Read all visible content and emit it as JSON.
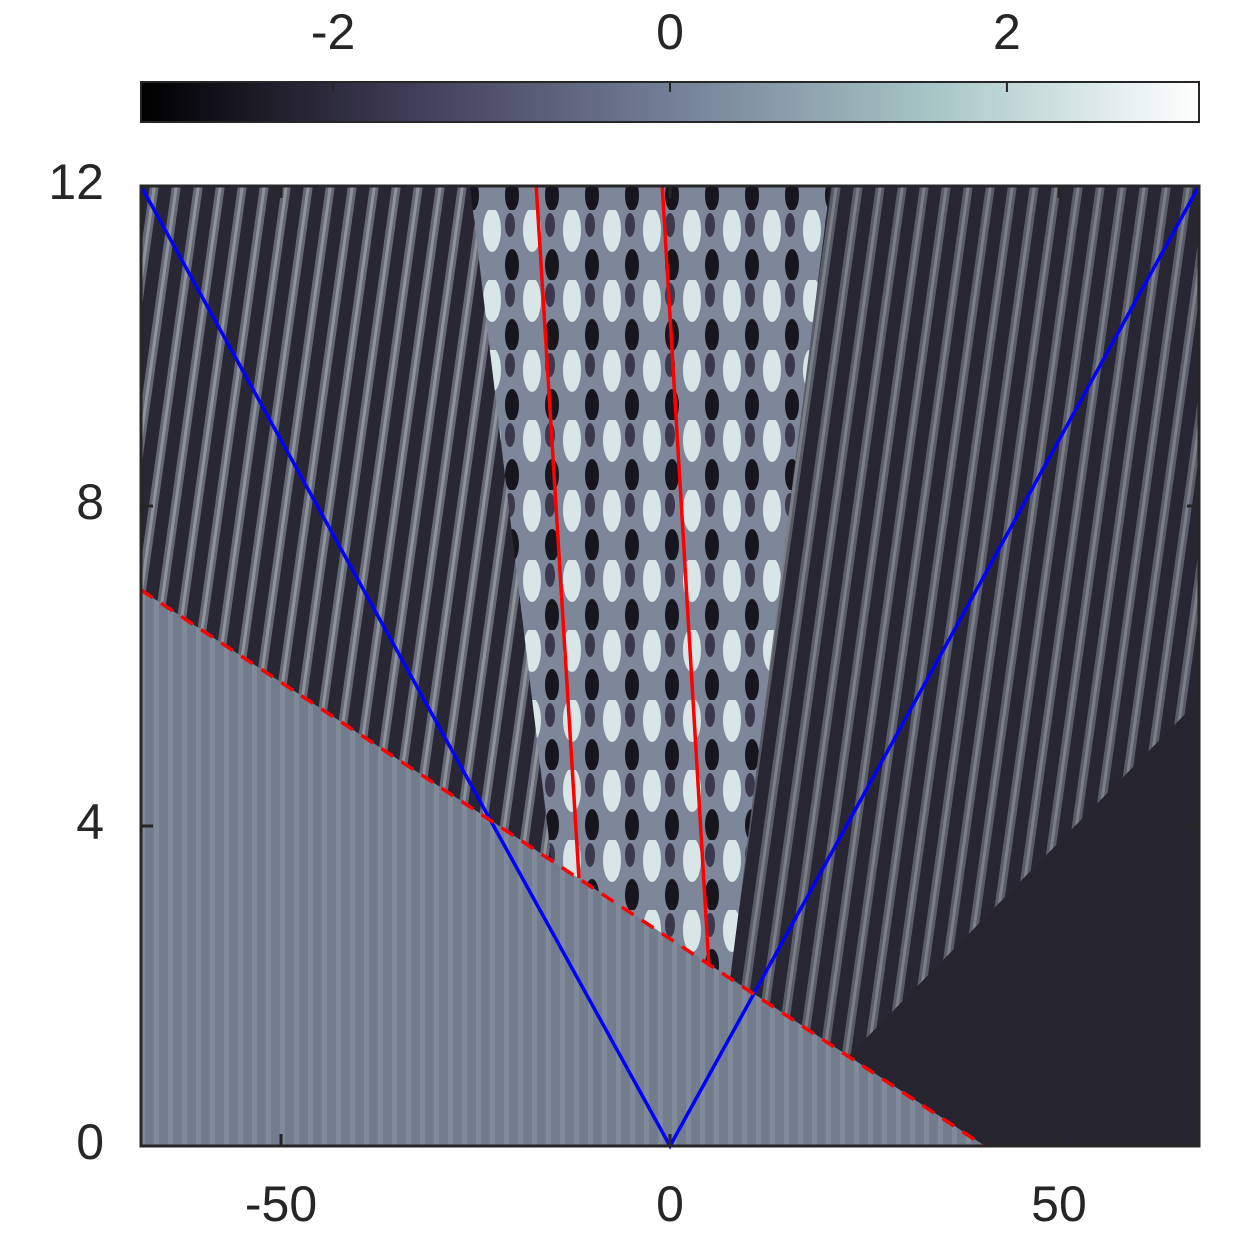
{
  "chart_data": {
    "type": "heatmap",
    "xlim": [
      -68,
      68
    ],
    "ylim": [
      0,
      12
    ],
    "xticks": [
      -50,
      0,
      50
    ],
    "yticks": [
      0,
      4,
      8,
      12
    ],
    "clim": [
      -3.14,
      3.14
    ],
    "cticks": [
      -2,
      0,
      2
    ],
    "colormap": [
      "#000000",
      "#3f3c55",
      "#737f95",
      "#a7c6c6",
      "#ffffff"
    ],
    "series": [
      {
        "color": "#0000ff",
        "style": "solid",
        "x": [
          -68,
          0,
          68
        ],
        "values": [
          12,
          0,
          12
        ]
      },
      {
        "color": "#ff0000",
        "style": "dashed",
        "x": [
          -68,
          40.4
        ],
        "values": [
          6.95,
          0
        ]
      },
      {
        "color": "#ff0000",
        "style": "solid",
        "x": [
          -17.2,
          -11.7
        ],
        "values": [
          12,
          3.35
        ]
      },
      {
        "color": "#ff0000",
        "style": "solid",
        "x": [
          -1,
          5
        ],
        "values": [
          12,
          2.26
        ]
      }
    ]
  }
}
